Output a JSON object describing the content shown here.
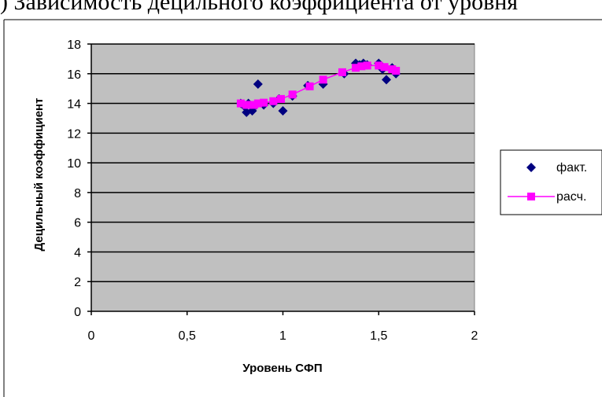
{
  "page": {
    "top_text": ") Зависимость децильного коэффициента от уровня"
  },
  "chart_data": {
    "type": "scatter",
    "title": "",
    "xlabel": "Уровень СФП",
    "ylabel": "Децильный коэффициент",
    "xlim": [
      0,
      2
    ],
    "ylim": [
      0,
      18
    ],
    "x_ticks": [
      "0",
      "0,5",
      "1",
      "1,5",
      "2"
    ],
    "y_ticks": [
      "0",
      "2",
      "4",
      "6",
      "8",
      "10",
      "12",
      "14",
      "16",
      "18"
    ],
    "grid": true,
    "legend_position": "right",
    "colors": {
      "fact": "#000080",
      "calc": "#ff00ff",
      "plot_bg": "#c0c0c0"
    },
    "series": [
      {
        "name": "факт.",
        "marker": "diamond",
        "line": false,
        "x": [
          0.78,
          0.8,
          0.81,
          0.82,
          0.84,
          0.86,
          0.87,
          0.9,
          0.95,
          0.98,
          1.0,
          1.05,
          1.13,
          1.21,
          1.32,
          1.38,
          1.4,
          1.42,
          1.44,
          1.5,
          1.52,
          1.54,
          1.57,
          1.59
        ],
        "y": [
          14.0,
          13.8,
          13.4,
          14.0,
          13.5,
          13.9,
          15.3,
          13.9,
          14.0,
          14.3,
          13.5,
          14.5,
          15.2,
          15.3,
          16.0,
          16.7,
          16.6,
          16.7,
          16.6,
          16.7,
          16.3,
          15.6,
          16.4,
          16.0
        ]
      },
      {
        "name": "расч.",
        "marker": "square",
        "line": true,
        "x": [
          0.78,
          0.81,
          0.82,
          0.85,
          0.87,
          0.9,
          0.95,
          0.99,
          1.05,
          1.14,
          1.21,
          1.31,
          1.38,
          1.41,
          1.44,
          1.5,
          1.53,
          1.57,
          1.59
        ],
        "y": [
          14.0,
          13.9,
          13.9,
          13.9,
          14.0,
          14.05,
          14.15,
          14.3,
          14.6,
          15.15,
          15.6,
          16.1,
          16.4,
          16.5,
          16.55,
          16.55,
          16.45,
          16.3,
          16.2
        ]
      }
    ]
  }
}
